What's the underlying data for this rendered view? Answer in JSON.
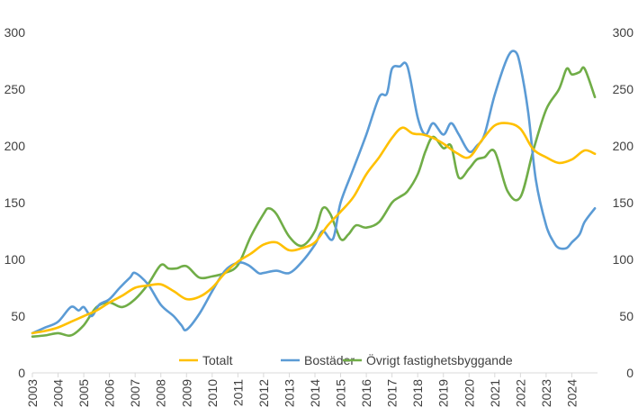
{
  "chart_data": {
    "type": "line",
    "title": "",
    "xlabel": "",
    "ylabel": "",
    "ylim": [
      0,
      300
    ],
    "y_ticks": [
      0,
      50,
      100,
      150,
      200,
      250,
      300
    ],
    "y_axis_right": true,
    "grid": false,
    "x_ticks": [
      "2003",
      "2004",
      "2005",
      "2006",
      "2007",
      "2008",
      "2009",
      "2010",
      "2011",
      "2012",
      "2013",
      "2014",
      "2015",
      "2016",
      "2017",
      "2018",
      "2019",
      "2020",
      "2021",
      "2022",
      "2023",
      "2024"
    ],
    "legend_position": "bottom-inside",
    "series": [
      {
        "name": "Totalt",
        "color": "#FFC000",
        "x": [
          2003.0,
          2003.5,
          2004.0,
          2004.5,
          2005.0,
          2005.5,
          2006.0,
          2006.5,
          2007.0,
          2007.5,
          2008.0,
          2008.5,
          2009.0,
          2009.5,
          2010.0,
          2010.5,
          2011.0,
          2011.5,
          2012.0,
          2012.5,
          2013.0,
          2013.5,
          2014.0,
          2014.5,
          2015.0,
          2015.5,
          2016.0,
          2016.5,
          2017.0,
          2017.4,
          2017.8,
          2018.2,
          2018.6,
          2019.0,
          2019.5,
          2020.0,
          2020.5,
          2021.0,
          2021.5,
          2022.0,
          2022.5,
          2023.0,
          2023.5,
          2024.0,
          2024.5,
          2024.9
        ],
        "values": [
          35,
          37,
          40,
          45,
          50,
          55,
          62,
          68,
          75,
          77,
          78,
          72,
          65,
          67,
          75,
          88,
          98,
          105,
          113,
          115,
          108,
          110,
          115,
          130,
          142,
          155,
          175,
          190,
          207,
          216,
          211,
          210,
          207,
          202,
          194,
          190,
          205,
          218,
          220,
          215,
          197,
          190,
          185,
          188,
          196,
          193
        ]
      },
      {
        "name": "Bostäder",
        "color": "#5B9BD5",
        "x": [
          2003.0,
          2003.5,
          2004.0,
          2004.5,
          2004.8,
          2005.0,
          2005.3,
          2005.6,
          2006.0,
          2006.4,
          2006.8,
          2007.0,
          2007.5,
          2008.0,
          2008.5,
          2008.8,
          2009.0,
          2009.5,
          2010.0,
          2010.5,
          2011.0,
          2011.4,
          2011.8,
          2012.0,
          2012.5,
          2013.0,
          2013.5,
          2014.0,
          2014.3,
          2014.7,
          2015.0,
          2015.5,
          2016.0,
          2016.5,
          2016.8,
          2017.0,
          2017.3,
          2017.6,
          2018.0,
          2018.3,
          2018.6,
          2019.0,
          2019.3,
          2019.6,
          2020.0,
          2020.3,
          2020.6,
          2021.0,
          2021.5,
          2021.8,
          2022.0,
          2022.3,
          2022.6,
          2023.0,
          2023.3,
          2023.5,
          2023.8,
          2024.0,
          2024.3,
          2024.5,
          2024.9
        ],
        "values": [
          35,
          40,
          45,
          58,
          55,
          58,
          50,
          60,
          65,
          75,
          84,
          88,
          78,
          60,
          50,
          42,
          38,
          52,
          72,
          90,
          97,
          95,
          88,
          88,
          90,
          88,
          98,
          113,
          125,
          118,
          150,
          180,
          210,
          243,
          246,
          268,
          270,
          270,
          225,
          210,
          220,
          210,
          220,
          210,
          195,
          200,
          210,
          245,
          278,
          283,
          270,
          230,
          170,
          130,
          115,
          110,
          110,
          115,
          122,
          133,
          145
        ]
      },
      {
        "name": "Övrigt fastighetsbyggande",
        "color": "#70AD47",
        "x": [
          2003.0,
          2003.5,
          2004.0,
          2004.5,
          2005.0,
          2005.5,
          2006.0,
          2006.5,
          2007.0,
          2007.5,
          2008.0,
          2008.3,
          2008.6,
          2009.0,
          2009.5,
          2010.0,
          2010.5,
          2011.0,
          2011.5,
          2012.0,
          2012.2,
          2012.5,
          2013.0,
          2013.5,
          2014.0,
          2014.3,
          2014.6,
          2015.0,
          2015.3,
          2015.6,
          2016.0,
          2016.5,
          2017.0,
          2017.3,
          2017.6,
          2018.0,
          2018.3,
          2018.6,
          2019.0,
          2019.3,
          2019.6,
          2020.0,
          2020.3,
          2020.6,
          2021.0,
          2021.5,
          2022.0,
          2022.5,
          2023.0,
          2023.5,
          2023.8,
          2024.0,
          2024.3,
          2024.5,
          2024.9
        ],
        "values": [
          32,
          33,
          35,
          33,
          42,
          58,
          62,
          58,
          65,
          78,
          95,
          92,
          92,
          94,
          84,
          85,
          88,
          95,
          120,
          140,
          145,
          140,
          120,
          112,
          125,
          145,
          140,
          118,
          122,
          130,
          128,
          133,
          150,
          155,
          160,
          175,
          195,
          208,
          198,
          200,
          172,
          180,
          188,
          190,
          195,
          160,
          155,
          196,
          232,
          250,
          268,
          263,
          265,
          268,
          243
        ]
      }
    ]
  }
}
